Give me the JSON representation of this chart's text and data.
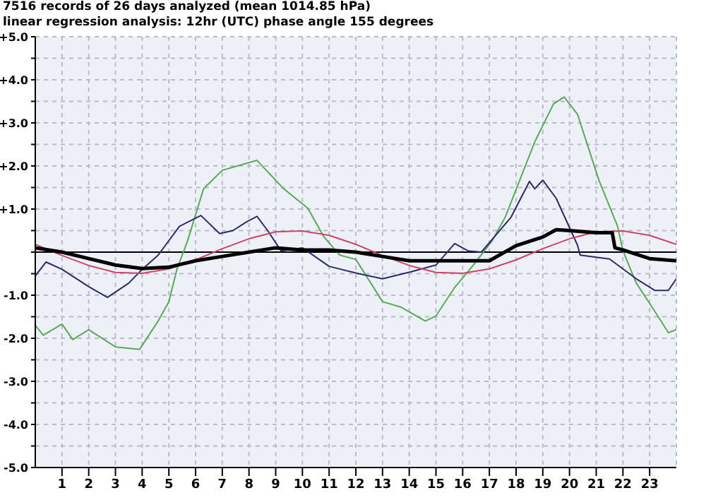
{
  "chart_data": {
    "type": "line",
    "title": "7516 records of 26 days analyzed (mean 1014.85 hPa)",
    "subtitle": "linear regression analysis: 12hr (UTC) phase angle 155 degrees",
    "xlim": [
      0,
      24
    ],
    "xticks": [
      1,
      2,
      3,
      4,
      5,
      6,
      7,
      8,
      9,
      10,
      11,
      12,
      13,
      14,
      15,
      16,
      17,
      18,
      19,
      20,
      21,
      22,
      23
    ],
    "ylim": [
      -5,
      5
    ],
    "yticks": [
      {
        "value": -5,
        "label": "-5.0"
      },
      {
        "value": -4.5,
        "label": null
      },
      {
        "value": -4,
        "label": "-4.0"
      },
      {
        "value": -3.5,
        "label": null
      },
      {
        "value": -3,
        "label": "-3.0"
      },
      {
        "value": -2.5,
        "label": null
      },
      {
        "value": -2,
        "label": "-2.0"
      },
      {
        "value": -1.5,
        "label": null
      },
      {
        "value": -1,
        "label": "-1.0"
      },
      {
        "value": -0.5,
        "label": null
      },
      {
        "value": 0,
        "label": null
      },
      {
        "value": 0.5,
        "label": null
      },
      {
        "value": 1,
        "label": "+1.0"
      },
      {
        "value": 1.5,
        "label": null
      },
      {
        "value": 2,
        "label": "+2.0"
      },
      {
        "value": 2.5,
        "label": null
      },
      {
        "value": 3,
        "label": "+3.0"
      },
      {
        "value": 3.5,
        "label": null
      },
      {
        "value": 4,
        "label": "+4.0"
      },
      {
        "value": 4.5,
        "label": null
      },
      {
        "value": 5,
        "label": "+5.0"
      }
    ],
    "grid": true,
    "legend": false,
    "marker": "none",
    "line_style": "solid",
    "ref_lines": [
      {
        "axis": "y",
        "value": 0,
        "color": "#000000"
      }
    ],
    "series": [
      {
        "color": "#5aa85a",
        "x": [
          0,
          0.3,
          1,
          1.4,
          2,
          3,
          3.9,
          4.6,
          5,
          5.3,
          5.7,
          6.3,
          7,
          8.3,
          9.3,
          10.2,
          10.8,
          11.4,
          12,
          13,
          13.7,
          14.6,
          15,
          15.7,
          16.4,
          17.1,
          17.6,
          18.7,
          19.4,
          19.8,
          20.3,
          21.1,
          21.8,
          22,
          22.5,
          23.2,
          23.7,
          24
        ],
        "values": [
          -1.7,
          -1.93,
          -1.67,
          -2.03,
          -1.8,
          -2.2,
          -2.26,
          -1.6,
          -1.15,
          -0.4,
          0.26,
          1.47,
          1.9,
          2.13,
          1.47,
          1.02,
          0.36,
          -0.07,
          -0.17,
          -1.15,
          -1.28,
          -1.6,
          -1.48,
          -0.82,
          -0.3,
          0.26,
          0.82,
          2.56,
          3.44,
          3.6,
          3.2,
          1.67,
          0.6,
          0.03,
          -0.72,
          -1.38,
          -1.87,
          -1.8
        ]
      },
      {
        "color": "#2b2b6b",
        "x": [
          0,
          0.4,
          1,
          2,
          2.7,
          3.5,
          4,
          4.6,
          5.4,
          6.2,
          6.9,
          7.4,
          7.9,
          8.3,
          8.7,
          9.2,
          10,
          11,
          12.1,
          13,
          14.1,
          15,
          15.7,
          16.2,
          16.7,
          17.8,
          18.5,
          18.7,
          19,
          19.5,
          20.3,
          20.4,
          21.5,
          22.5,
          23.2,
          23.7,
          24
        ],
        "values": [
          -0.55,
          -0.23,
          -0.4,
          -0.8,
          -1.05,
          -0.72,
          -0.4,
          -0.07,
          0.6,
          0.85,
          0.43,
          0.5,
          0.7,
          0.83,
          0.5,
          0.03,
          0.1,
          -0.33,
          -0.5,
          -0.62,
          -0.45,
          -0.3,
          0.2,
          0.03,
          0,
          0.8,
          1.64,
          1.47,
          1.67,
          1.25,
          0.16,
          -0.07,
          -0.16,
          -0.62,
          -0.89,
          -0.89,
          -0.62
        ]
      },
      {
        "color": "#cc4466",
        "x": [
          0,
          1,
          2,
          3,
          4,
          5,
          6,
          7,
          8,
          9,
          10,
          11,
          12,
          13,
          14,
          15,
          16,
          17,
          18,
          19,
          20,
          21,
          22,
          23,
          24
        ],
        "values": [
          0.18,
          -0.08,
          -0.31,
          -0.47,
          -0.49,
          -0.39,
          -0.18,
          0.08,
          0.31,
          0.47,
          0.49,
          0.39,
          0.18,
          -0.08,
          -0.31,
          -0.47,
          -0.49,
          -0.39,
          -0.18,
          0.08,
          0.31,
          0.47,
          0.49,
          0.39,
          0.18
        ]
      },
      {
        "color": "#000000",
        "x": [
          0,
          1,
          2,
          3,
          4,
          5,
          6,
          7,
          8,
          9,
          10,
          11,
          12,
          13,
          14,
          15,
          16,
          17,
          18,
          19,
          19.5,
          20,
          21,
          21.6,
          21.7,
          22,
          23,
          24
        ],
        "values": [
          0.1,
          0,
          -0.15,
          -0.3,
          -0.38,
          -0.35,
          -0.2,
          -0.1,
          0,
          0.1,
          0.05,
          0.05,
          0,
          -0.1,
          -0.2,
          -0.2,
          -0.2,
          -0.2,
          0.15,
          0.35,
          0.52,
          0.5,
          0.45,
          0.45,
          0.1,
          0.05,
          -0.15,
          -0.2
        ]
      }
    ]
  }
}
